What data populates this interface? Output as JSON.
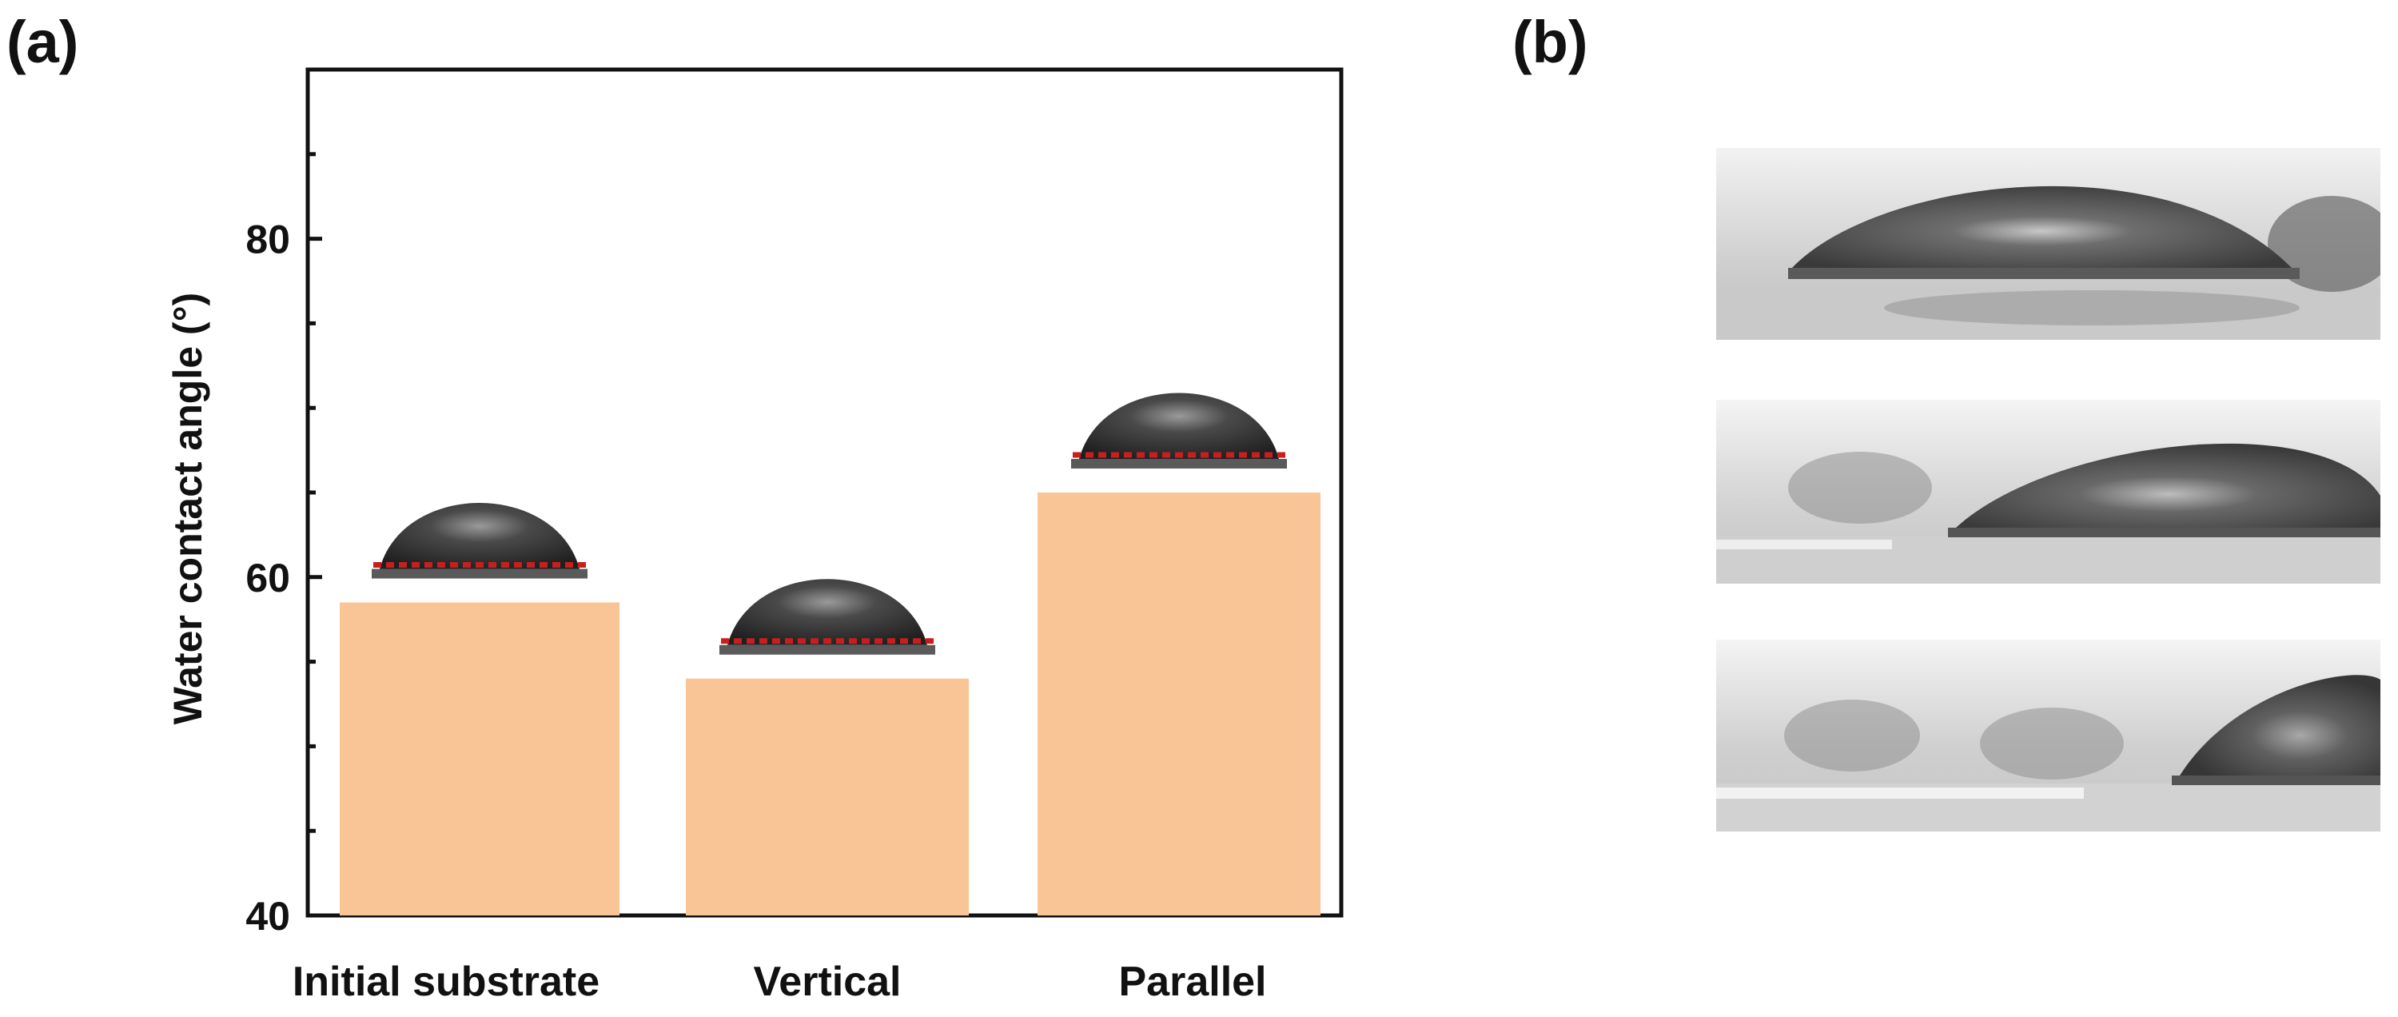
{
  "panels": {
    "a": {
      "label": "(a)"
    },
    "b": {
      "label": "(b)"
    }
  },
  "chart_data": {
    "type": "bar",
    "categories": [
      "Initial substrate",
      "Vertical",
      "Parallel"
    ],
    "values": [
      58.5,
      54.0,
      65.0
    ],
    "ylabel": "Water contact angle (°)",
    "xlabel": "",
    "ylim": [
      40,
      90
    ],
    "yticks": [
      40,
      60,
      80
    ],
    "bar_color": "#f9c596",
    "grid": false,
    "insets": "droplet photo above each bar"
  },
  "panel_b": {
    "photos": [
      "droplet-photo-top",
      "droplet-photo-middle",
      "droplet-photo-bottom"
    ]
  }
}
